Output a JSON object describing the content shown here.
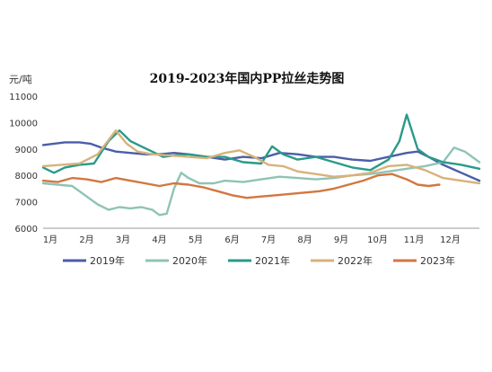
{
  "chart_data": {
    "type": "line",
    "title": "2019-2023年国内PP拉丝走势图",
    "ylabel": "元/吨",
    "xlabel": "",
    "ylim": [
      6000,
      11000
    ],
    "yticks": [
      "6000",
      "7000",
      "8000",
      "9000",
      "10000",
      "11000"
    ],
    "xlim": [
      0,
      12
    ],
    "x_tick_labels": [
      "1月",
      "2月",
      "3月",
      "4月",
      "5月",
      "6月",
      "7月",
      "8月",
      "9月",
      "10月",
      "11月",
      "12月"
    ],
    "grid": false,
    "legend_position": "bottom",
    "series": [
      {
        "name": "2019年",
        "color": "#4a5ea8",
        "points": [
          [
            0,
            9150
          ],
          [
            0.3,
            9200
          ],
          [
            0.6,
            9250
          ],
          [
            1.0,
            9250
          ],
          [
            1.3,
            9200
          ],
          [
            1.6,
            9050
          ],
          [
            2.0,
            8900
          ],
          [
            2.4,
            8850
          ],
          [
            2.8,
            8800
          ],
          [
            3.2,
            8800
          ],
          [
            3.6,
            8850
          ],
          [
            4.0,
            8800
          ],
          [
            4.5,
            8700
          ],
          [
            5.0,
            8600
          ],
          [
            5.5,
            8700
          ],
          [
            6.0,
            8650
          ],
          [
            6.5,
            8850
          ],
          [
            7.0,
            8800
          ],
          [
            7.5,
            8700
          ],
          [
            8.0,
            8700
          ],
          [
            8.5,
            8600
          ],
          [
            9.0,
            8550
          ],
          [
            9.5,
            8700
          ],
          [
            10.0,
            8850
          ],
          [
            10.3,
            8900
          ],
          [
            10.6,
            8700
          ],
          [
            11.0,
            8400
          ],
          [
            11.5,
            8100
          ],
          [
            12.0,
            7800
          ]
        ]
      },
      {
        "name": "2020年",
        "color": "#8fc3b6",
        "points": [
          [
            0,
            7700
          ],
          [
            0.4,
            7650
          ],
          [
            0.8,
            7600
          ],
          [
            1.2,
            7200
          ],
          [
            1.5,
            6900
          ],
          [
            1.8,
            6700
          ],
          [
            2.1,
            6800
          ],
          [
            2.4,
            6750
          ],
          [
            2.7,
            6800
          ],
          [
            3.0,
            6700
          ],
          [
            3.2,
            6500
          ],
          [
            3.4,
            6550
          ],
          [
            3.6,
            7500
          ],
          [
            3.8,
            8100
          ],
          [
            4.0,
            7900
          ],
          [
            4.3,
            7700
          ],
          [
            4.7,
            7700
          ],
          [
            5.0,
            7800
          ],
          [
            5.5,
            7750
          ],
          [
            6.0,
            7850
          ],
          [
            6.5,
            7950
          ],
          [
            7.0,
            7900
          ],
          [
            7.5,
            7850
          ],
          [
            8.0,
            7900
          ],
          [
            8.5,
            8000
          ],
          [
            9.0,
            8050
          ],
          [
            9.5,
            8150
          ],
          [
            10.0,
            8250
          ],
          [
            10.5,
            8350
          ],
          [
            11.0,
            8500
          ],
          [
            11.3,
            9050
          ],
          [
            11.6,
            8900
          ],
          [
            12.0,
            8500
          ]
        ]
      },
      {
        "name": "2021年",
        "color": "#2a9a8a",
        "points": [
          [
            0,
            8300
          ],
          [
            0.3,
            8100
          ],
          [
            0.6,
            8300
          ],
          [
            1.0,
            8400
          ],
          [
            1.4,
            8450
          ],
          [
            1.8,
            9300
          ],
          [
            2.1,
            9700
          ],
          [
            2.4,
            9300
          ],
          [
            2.7,
            9100
          ],
          [
            3.0,
            8900
          ],
          [
            3.3,
            8700
          ],
          [
            3.6,
            8750
          ],
          [
            4.0,
            8800
          ],
          [
            4.5,
            8700
          ],
          [
            5.0,
            8700
          ],
          [
            5.5,
            8500
          ],
          [
            6.0,
            8450
          ],
          [
            6.3,
            9100
          ],
          [
            6.6,
            8800
          ],
          [
            7.0,
            8600
          ],
          [
            7.5,
            8700
          ],
          [
            8.0,
            8500
          ],
          [
            8.5,
            8300
          ],
          [
            9.0,
            8200
          ],
          [
            9.5,
            8600
          ],
          [
            9.8,
            9300
          ],
          [
            10.0,
            10300
          ],
          [
            10.3,
            9000
          ],
          [
            10.6,
            8700
          ],
          [
            11.0,
            8500
          ],
          [
            11.5,
            8400
          ],
          [
            12.0,
            8250
          ]
        ]
      },
      {
        "name": "2022年",
        "color": "#d8b27a",
        "points": [
          [
            0,
            8350
          ],
          [
            0.5,
            8400
          ],
          [
            1.0,
            8450
          ],
          [
            1.5,
            8800
          ],
          [
            2.0,
            9700
          ],
          [
            2.3,
            9200
          ],
          [
            2.6,
            8900
          ],
          [
            3.0,
            8800
          ],
          [
            3.5,
            8750
          ],
          [
            4.0,
            8700
          ],
          [
            4.5,
            8650
          ],
          [
            5.0,
            8850
          ],
          [
            5.4,
            8950
          ],
          [
            5.8,
            8700
          ],
          [
            6.2,
            8400
          ],
          [
            6.6,
            8350
          ],
          [
            7.0,
            8150
          ],
          [
            7.5,
            8050
          ],
          [
            8.0,
            7950
          ],
          [
            8.5,
            8000
          ],
          [
            9.0,
            8100
          ],
          [
            9.5,
            8350
          ],
          [
            10.0,
            8400
          ],
          [
            10.5,
            8200
          ],
          [
            11.0,
            7900
          ],
          [
            11.5,
            7800
          ],
          [
            12.0,
            7700
          ]
        ]
      },
      {
        "name": "2023年",
        "color": "#d2773f",
        "points": [
          [
            0,
            7800
          ],
          [
            0.4,
            7750
          ],
          [
            0.8,
            7900
          ],
          [
            1.2,
            7850
          ],
          [
            1.6,
            7750
          ],
          [
            2.0,
            7900
          ],
          [
            2.4,
            7800
          ],
          [
            2.8,
            7700
          ],
          [
            3.2,
            7600
          ],
          [
            3.6,
            7700
          ],
          [
            4.0,
            7650
          ],
          [
            4.4,
            7550
          ],
          [
            4.8,
            7400
          ],
          [
            5.2,
            7250
          ],
          [
            5.6,
            7150
          ],
          [
            6.0,
            7200
          ],
          [
            6.4,
            7250
          ],
          [
            6.8,
            7300
          ],
          [
            7.2,
            7350
          ],
          [
            7.6,
            7400
          ],
          [
            8.0,
            7500
          ],
          [
            8.4,
            7650
          ],
          [
            8.8,
            7800
          ],
          [
            9.2,
            8000
          ],
          [
            9.6,
            8050
          ],
          [
            10.0,
            7850
          ],
          [
            10.3,
            7650
          ],
          [
            10.6,
            7600
          ],
          [
            10.9,
            7650
          ]
        ]
      }
    ]
  }
}
